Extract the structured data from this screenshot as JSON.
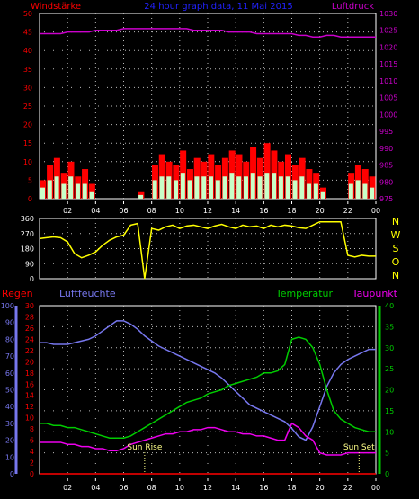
{
  "colors": {
    "background": "#000000",
    "frame": "#ffffff",
    "grid": "#bbbbbb",
    "wind_label": "#ff0000",
    "wind_bar": "#ff0000",
    "wind_avg": "#c8ffc8",
    "pressure": "#cc00cc",
    "pressure_axis": "#cc00cc",
    "title": "#2222ff",
    "direction": "#ffff00",
    "nwso": "#ffff00",
    "humidity": "#7777ee",
    "temperature": "#00cc00",
    "dewpoint": "#ee00ee",
    "rain": "#ff0000",
    "sun_label": "#ffff88"
  },
  "chart_data": [
    {
      "type": "bar",
      "title": "24 hour graph data, 11 Mai 2015",
      "xlabel": "",
      "x_ticks": [
        "02",
        "04",
        "06",
        "08",
        "10",
        "12",
        "14",
        "16",
        "18",
        "20",
        "22",
        "00"
      ],
      "left_axis": {
        "label": "Windstärke",
        "ticks": [
          0,
          5,
          10,
          15,
          20,
          25,
          30,
          35,
          40,
          45,
          50
        ],
        "ylim": [
          0,
          50
        ]
      },
      "right_axis": {
        "label": "Luftdruck",
        "ticks": [
          975,
          980,
          985,
          990,
          995,
          1000,
          1005,
          1010,
          1015,
          1020,
          1025,
          1030
        ],
        "ylim": [
          975,
          1030
        ]
      },
      "x_hours": [
        0,
        0.5,
        1,
        1.5,
        2,
        2.5,
        3,
        3.5,
        4,
        4.5,
        5,
        5.5,
        6,
        6.5,
        7,
        7.5,
        8,
        8.5,
        9,
        9.5,
        10,
        10.5,
        11,
        11.5,
        12,
        12.5,
        13,
        13.5,
        14,
        14.5,
        15,
        15.5,
        16,
        16.5,
        17,
        17.5,
        18,
        18.5,
        19,
        19.5,
        20,
        20.5,
        21,
        21.5,
        22,
        22.5,
        23,
        23.5
      ],
      "series": [
        {
          "name": "Windstärke",
          "type": "bar",
          "values": [
            5,
            9,
            11,
            7,
            10,
            6,
            8,
            4,
            0,
            0,
            0,
            0,
            0,
            0,
            2,
            0,
            9,
            12,
            10,
            9,
            13,
            8,
            11,
            10,
            12,
            9,
            11,
            13,
            12,
            10,
            14,
            11,
            15,
            13,
            10,
            12,
            9,
            11,
            8,
            7,
            3,
            0,
            0,
            0,
            7,
            9,
            8,
            6
          ]
        },
        {
          "name": "Windstärke (avg)",
          "type": "bar",
          "values": [
            3,
            5,
            6,
            4,
            6,
            4,
            4,
            2,
            0,
            0,
            0,
            0,
            0,
            0,
            1,
            0,
            5,
            6,
            6,
            5,
            7,
            5,
            6,
            6,
            6,
            5,
            6,
            7,
            6,
            6,
            7,
            6,
            7,
            7,
            6,
            6,
            5,
            6,
            4,
            4,
            2,
            0,
            0,
            0,
            4,
            5,
            4,
            3
          ]
        },
        {
          "name": "Luftdruck",
          "type": "line",
          "values": [
            1024,
            1024,
            1024,
            1024,
            1024.5,
            1024.5,
            1024.5,
            1024.5,
            1025,
            1025,
            1025,
            1025,
            1025.5,
            1025.5,
            1025.5,
            1025.5,
            1025.5,
            1025.5,
            1025.5,
            1025.5,
            1025.5,
            1025.5,
            1025,
            1025,
            1025,
            1025,
            1025,
            1024.5,
            1024.5,
            1024.5,
            1024.5,
            1024,
            1024,
            1024,
            1024,
            1024,
            1024,
            1023.5,
            1023.5,
            1023,
            1023,
            1023.5,
            1023.5,
            1023,
            1023,
            1023,
            1023,
            1023
          ]
        }
      ]
    },
    {
      "type": "line",
      "title": "",
      "left_axis": {
        "label": "",
        "ticks": [
          0,
          90,
          180,
          270,
          360
        ],
        "ylim": [
          0,
          360
        ]
      },
      "right_labels": [
        "N",
        "W",
        "S",
        "O",
        "N"
      ],
      "x_hours": [
        0,
        0.5,
        1,
        1.5,
        2,
        2.5,
        3,
        3.5,
        4,
        4.5,
        5,
        5.5,
        6,
        6.5,
        7,
        7.5,
        8,
        8.5,
        9,
        9.5,
        10,
        10.5,
        11,
        11.5,
        12,
        12.5,
        13,
        13.5,
        14,
        14.5,
        15,
        15.5,
        16,
        16.5,
        17,
        17.5,
        18,
        18.5,
        19,
        19.5,
        20,
        20.5,
        21,
        21.5,
        22,
        22.5,
        23,
        23.5
      ],
      "series": [
        {
          "name": "Windrichtung",
          "values": [
            240,
            245,
            250,
            245,
            220,
            150,
            125,
            140,
            160,
            200,
            230,
            250,
            260,
            320,
            330,
            0,
            300,
            290,
            310,
            320,
            300,
            315,
            320,
            310,
            300,
            315,
            325,
            310,
            300,
            320,
            310,
            315,
            300,
            320,
            310,
            320,
            315,
            305,
            300,
            320,
            340,
            340,
            340,
            340,
            140,
            130,
            140,
            135
          ]
        }
      ]
    },
    {
      "type": "line",
      "title": "",
      "left_axis_humidity": {
        "label": "Luftfeuchte",
        "ticks": [
          0,
          10,
          20,
          30,
          40,
          50,
          60,
          70,
          80,
          90,
          100
        ],
        "ylim": [
          0,
          100
        ]
      },
      "left_axis_rain": {
        "label": "Regen",
        "ticks": [
          0,
          2,
          4,
          6,
          8,
          10,
          12,
          14,
          16,
          18,
          20,
          22,
          24,
          26,
          28,
          30
        ],
        "ylim": [
          0,
          30
        ]
      },
      "right_axis": {
        "label": "Temperatur",
        "ticks": [
          0,
          5,
          10,
          15,
          20,
          25,
          30,
          35,
          40
        ],
        "ylim": [
          0,
          40
        ]
      },
      "right_label_2": "Taupunkt",
      "x_ticks": [
        "02",
        "04",
        "06",
        "08",
        "10",
        "12",
        "14",
        "16",
        "18",
        "20",
        "22",
        "00"
      ],
      "annotations": [
        {
          "text": "Sun Rise",
          "hour": 7.5
        },
        {
          "text": "Sun Set",
          "hour": 22.8
        }
      ],
      "x_hours": [
        0,
        0.5,
        1,
        1.5,
        2,
        2.5,
        3,
        3.5,
        4,
        4.5,
        5,
        5.5,
        6,
        6.5,
        7,
        7.5,
        8,
        8.5,
        9,
        9.5,
        10,
        10.5,
        11,
        11.5,
        12,
        12.5,
        13,
        13.5,
        14,
        14.5,
        15,
        15.5,
        16,
        16.5,
        17,
        17.5,
        18,
        18.5,
        19,
        19.5,
        20,
        20.5,
        21,
        21.5,
        22,
        22.5,
        23,
        23.5
      ],
      "series": [
        {
          "name": "Luftfeuchte",
          "values": [
            78,
            78,
            77,
            77,
            77,
            78,
            79,
            80,
            82,
            85,
            88,
            91,
            91,
            89,
            86,
            82,
            79,
            76,
            74,
            72,
            70,
            68,
            66,
            64,
            62,
            60,
            57,
            53,
            49,
            45,
            41,
            39,
            37,
            35,
            33,
            31,
            27,
            22,
            20,
            28,
            40,
            52,
            60,
            65,
            68,
            70,
            72,
            74
          ]
        },
        {
          "name": "Temperatur",
          "values": [
            12,
            12,
            11.5,
            11.5,
            11,
            11,
            10.5,
            10,
            9.5,
            9,
            8.5,
            8.5,
            8.5,
            9,
            10,
            11,
            12,
            13,
            14,
            15,
            16,
            17,
            17.5,
            18,
            19,
            19.5,
            20,
            21,
            21.5,
            22,
            22.5,
            23,
            24,
            24,
            24.5,
            26,
            32,
            32.5,
            32,
            30,
            26,
            20,
            15,
            13,
            12,
            11,
            10.5,
            10
          ]
        },
        {
          "name": "Taupunkt",
          "values": [
            7.5,
            7.5,
            7.5,
            7.5,
            7,
            7,
            6.5,
            6.5,
            6,
            6,
            5.5,
            5.5,
            6,
            7,
            7.5,
            8,
            8.5,
            9,
            9.5,
            9.5,
            10,
            10,
            10.5,
            10.5,
            11,
            11,
            10.5,
            10,
            10,
            9.5,
            9.5,
            9,
            9,
            8.5,
            8,
            8,
            12,
            11,
            9,
            8,
            5,
            4.5,
            4.5,
            4.5,
            5,
            5,
            5,
            5
          ]
        },
        {
          "name": "Regen",
          "values": [
            0,
            0,
            0,
            0,
            0,
            0,
            0,
            0,
            0,
            0,
            0,
            0,
            0,
            0,
            0,
            0,
            0,
            0,
            0,
            0,
            0,
            0,
            0,
            0,
            0,
            0,
            0,
            0,
            0,
            0,
            0,
            0,
            0,
            0,
            0,
            0,
            0,
            0,
            0,
            0,
            0,
            0,
            0,
            0,
            0,
            0,
            0,
            0
          ]
        }
      ]
    }
  ]
}
